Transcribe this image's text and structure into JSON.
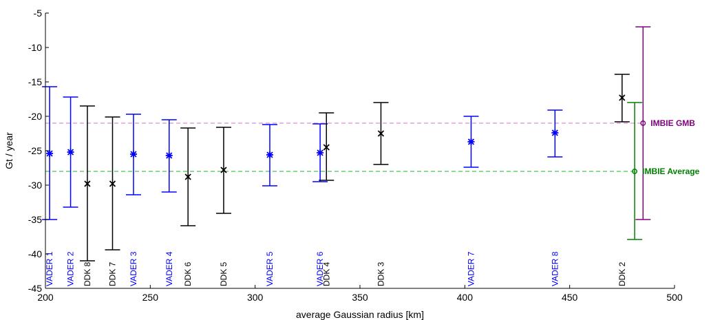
{
  "chart_data": {
    "type": "scatter",
    "xlabel": "average Gaussian radius [km]",
    "ylabel": "Gt / year",
    "xlim": [
      200,
      500
    ],
    "ylim": [
      -45,
      -5
    ],
    "xticks": [
      200,
      250,
      300,
      350,
      400,
      450,
      500
    ],
    "yticks": [
      -45,
      -40,
      -35,
      -30,
      -25,
      -20,
      -15,
      -10,
      -5
    ],
    "grid": false,
    "series": [
      {
        "group": "VADER",
        "color": "#0000ff",
        "marker": "asterisk",
        "points": [
          {
            "label": "VADER 1",
            "x": 202,
            "y": -25.4,
            "low": -35.0,
            "high": -15.7
          },
          {
            "label": "VADER 2",
            "x": 212,
            "y": -25.2,
            "low": -33.2,
            "high": -17.2
          },
          {
            "label": "VADER 3",
            "x": 242,
            "y": -25.5,
            "low": -31.4,
            "high": -19.7
          },
          {
            "label": "VADER 4",
            "x": 259,
            "y": -25.7,
            "low": -31.0,
            "high": -20.5
          },
          {
            "label": "VADER 5",
            "x": 307,
            "y": -25.6,
            "low": -30.1,
            "high": -21.2
          },
          {
            "label": "VADER 6",
            "x": 331,
            "y": -25.3,
            "low": -29.5,
            "high": -21.1
          },
          {
            "label": "VADER 7",
            "x": 403,
            "y": -23.7,
            "low": -27.4,
            "high": -20.0
          },
          {
            "label": "VADER 8",
            "x": 443,
            "y": -22.4,
            "low": -25.9,
            "high": -19.1
          }
        ]
      },
      {
        "group": "DDK",
        "color": "#000000",
        "marker": "x",
        "points": [
          {
            "label": "DDK 8",
            "x": 220,
            "y": -29.8,
            "low": -41.0,
            "high": -18.5
          },
          {
            "label": "DDK 7",
            "x": 232,
            "y": -29.8,
            "low": -39.4,
            "high": -20.1
          },
          {
            "label": "DDK 6",
            "x": 268,
            "y": -28.8,
            "low": -35.9,
            "high": -21.7
          },
          {
            "label": "DDK 5",
            "x": 285,
            "y": -27.8,
            "low": -34.1,
            "high": -21.6
          },
          {
            "label": "DDK 4",
            "x": 334,
            "y": -24.5,
            "low": -29.3,
            "high": -19.5
          },
          {
            "label": "DDK 3",
            "x": 360,
            "y": -22.5,
            "low": -27.0,
            "high": -18.0
          },
          {
            "label": "DDK 2",
            "x": 475,
            "y": -17.3,
            "low": -20.8,
            "high": -13.9
          }
        ]
      }
    ],
    "references": [
      {
        "label": "IMBIE GMB",
        "color": "#800080",
        "linecolor": "#d98fd9",
        "x": 485,
        "y": -21.0,
        "low": -35.0,
        "high": -7.0
      },
      {
        "label": "IMBIE Average",
        "color": "#008000",
        "linecolor": "#4cc04c",
        "x": 481,
        "y": -28.0,
        "low": -37.9,
        "high": -18.0
      }
    ]
  }
}
